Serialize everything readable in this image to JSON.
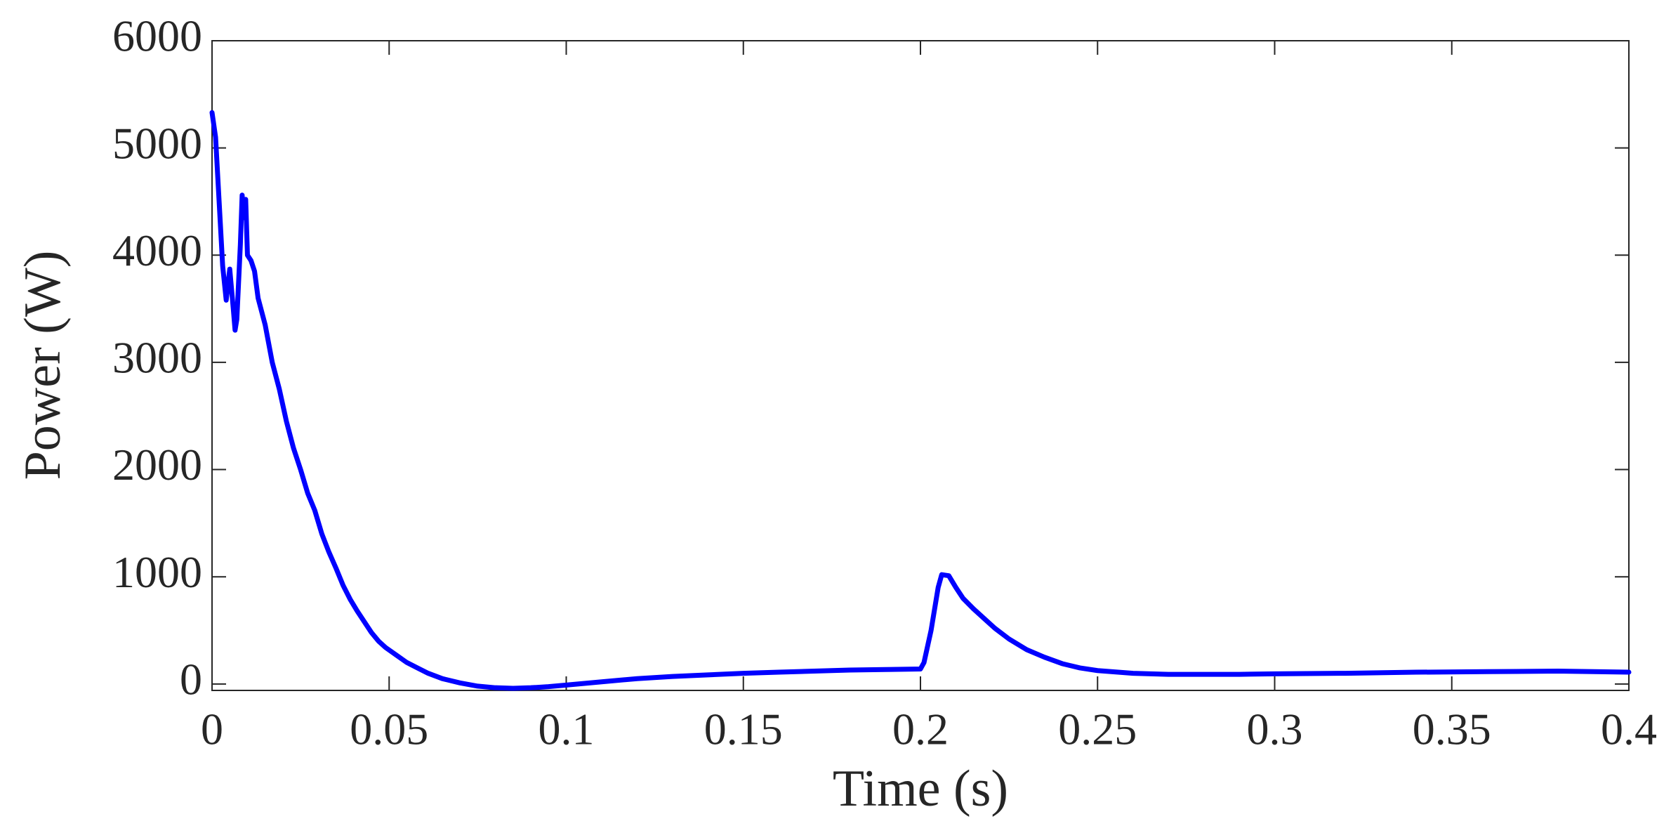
{
  "chart_data": {
    "type": "line",
    "xlabel": "Time (s)",
    "ylabel": "Power (W)",
    "xlim": [
      0,
      0.4
    ],
    "ylim": [
      -60,
      6000
    ],
    "xticks": [
      0,
      0.05,
      0.1,
      0.15,
      0.2,
      0.25,
      0.3,
      0.35,
      0.4
    ],
    "yticks": [
      0,
      1000,
      2000,
      3000,
      4000,
      5000,
      6000
    ],
    "grid": false,
    "x": [
      0,
      0.001,
      0.002,
      0.003,
      0.004,
      0.005,
      0.006,
      0.0065,
      0.007,
      0.008,
      0.0085,
      0.009,
      0.0095,
      0.01,
      0.011,
      0.012,
      0.013,
      0.015,
      0.017,
      0.019,
      0.021,
      0.023,
      0.025,
      0.027,
      0.029,
      0.031,
      0.033,
      0.035,
      0.037,
      0.039,
      0.041,
      0.043,
      0.045,
      0.047,
      0.049,
      0.052,
      0.055,
      0.058,
      0.061,
      0.065,
      0.07,
      0.075,
      0.08,
      0.085,
      0.09,
      0.095,
      0.1,
      0.11,
      0.12,
      0.13,
      0.14,
      0.15,
      0.16,
      0.17,
      0.18,
      0.19,
      0.2,
      0.201,
      0.203,
      0.205,
      0.206,
      0.208,
      0.21,
      0.212,
      0.215,
      0.218,
      0.221,
      0.225,
      0.23,
      0.235,
      0.24,
      0.245,
      0.25,
      0.26,
      0.27,
      0.28,
      0.29,
      0.3,
      0.32,
      0.34,
      0.36,
      0.38,
      0.4
    ],
    "series": [
      {
        "color": "#0000ff",
        "values": [
          5330,
          5100,
          4500,
          3900,
          3580,
          3870,
          3500,
          3300,
          3400,
          4100,
          4560,
          4350,
          4520,
          4000,
          3950,
          3850,
          3600,
          3350,
          3000,
          2750,
          2450,
          2200,
          2000,
          1780,
          1620,
          1400,
          1230,
          1080,
          920,
          790,
          680,
          580,
          480,
          400,
          340,
          270,
          200,
          150,
          100,
          50,
          10,
          -20,
          -35,
          -40,
          -35,
          -25,
          -10,
          20,
          50,
          70,
          85,
          100,
          110,
          120,
          130,
          135,
          140,
          200,
          500,
          900,
          1020,
          1010,
          900,
          800,
          700,
          610,
          520,
          420,
          320,
          250,
          190,
          150,
          125,
          100,
          90,
          90,
          90,
          95,
          100,
          110,
          115,
          120,
          110
        ]
      }
    ]
  }
}
